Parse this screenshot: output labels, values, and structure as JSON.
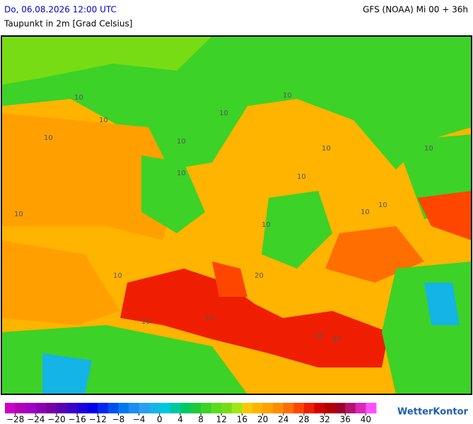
{
  "header": {
    "date": "Do, 06.08.2026 12:00 UTC",
    "model": "GFS (NOAA) Mi 00 + 36h",
    "parameter": "Taupunkt in 2m [Grad Celsius]"
  },
  "map": {
    "contour_labels": [
      "10",
      "10",
      "10",
      "10",
      "10",
      "10",
      "10",
      "10",
      "10",
      "20",
      "10",
      "10",
      "10",
      "10",
      "10",
      "10",
      "10",
      "10",
      "20",
      "10"
    ]
  },
  "colorbar": {
    "range": [
      -30,
      42
    ],
    "colors": [
      "#c800c8",
      "#b400b4",
      "#a000c8",
      "#8c00b4",
      "#7800a0",
      "#5a00b4",
      "#3c00c8",
      "#1e00dc",
      "#0000e6",
      "#0028f0",
      "#0050f0",
      "#0078f0",
      "#1e8cf0",
      "#28a0f0",
      "#14b4e6",
      "#00c8dc",
      "#00c8a0",
      "#00c864",
      "#1ec83c",
      "#3cd228",
      "#5adc1e",
      "#78dc14",
      "#a0e614",
      "#fac800",
      "#ffb400",
      "#ffa000",
      "#ff8c00",
      "#ff6e00",
      "#ff4600",
      "#f01e00",
      "#d20000",
      "#b40000",
      "#a00028",
      "#b4146e",
      "#dc28b4",
      "#ff50ff"
    ],
    "ticks": [
      {
        "value": -28,
        "label": "−28"
      },
      {
        "value": -24,
        "label": "−24"
      },
      {
        "value": -20,
        "label": "−20"
      },
      {
        "value": -16,
        "label": "−16"
      },
      {
        "value": -12,
        "label": "−12"
      },
      {
        "value": -8,
        "label": "−8"
      },
      {
        "value": -4,
        "label": "−4"
      },
      0,
      4,
      8,
      12,
      16,
      20,
      24,
      28,
      32,
      36,
      40
    ]
  },
  "logo": "WetterKontor"
}
